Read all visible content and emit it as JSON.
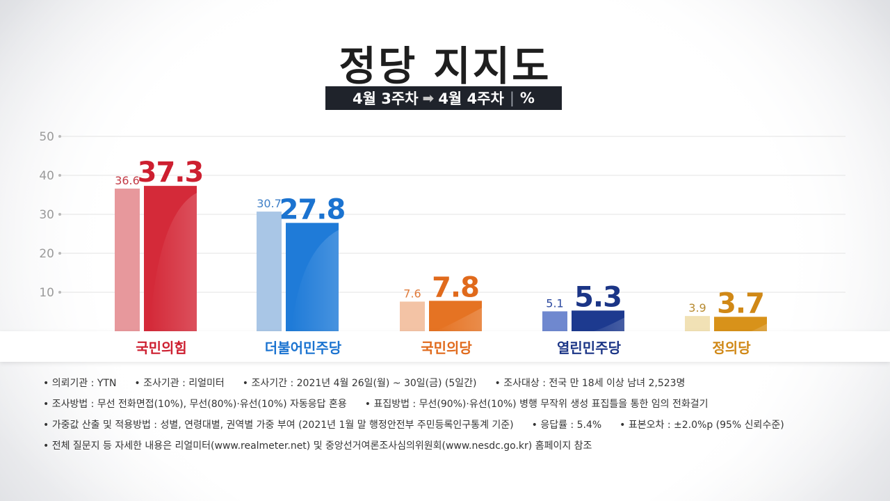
{
  "title": "정당 지지도",
  "subtitle": {
    "from": "4월 3주차",
    "to": "4월 4주차",
    "unit": "%"
  },
  "chart_data": {
    "type": "bar",
    "categories": [
      "국민의힘",
      "더불어민주당",
      "국민의당",
      "열린민주당",
      "정의당"
    ],
    "series": [
      {
        "name": "4월 3주차",
        "values": [
          36.6,
          30.7,
          7.6,
          5.1,
          3.9
        ]
      },
      {
        "name": "4월 4주차",
        "values": [
          37.3,
          27.8,
          7.8,
          5.3,
          3.7
        ]
      }
    ],
    "y_ticks": [
      10,
      20,
      30,
      40,
      50
    ],
    "ylim": [
      0,
      50
    ],
    "grid": true,
    "colors": {
      "prev": [
        "#e7989c",
        "#a9c6e6",
        "#f3c3a5",
        "#6f88cf",
        "#f1e1b5"
      ],
      "curr": [
        "#d42a39",
        "#1f7bd8",
        "#e57323",
        "#1d3a8f",
        "#d8921a"
      ],
      "prev_label": [
        "#c23a45",
        "#3f7fc7",
        "#e07a3a",
        "#2d4aa0",
        "#b78a30"
      ],
      "curr_label": [
        "#cd1f30",
        "#1b73d0",
        "#e06a1c",
        "#1b3586",
        "#d08816"
      ]
    }
  },
  "notes": [
    [
      "• 의뢰기관 : YTN",
      "• 조사기관 : 리얼미터",
      "• 조사기간 : 2021년 4월 26일(월) ~ 30일(금) (5일간)",
      "• 조사대상 : 전국 만 18세 이상 남녀 2,523명"
    ],
    [
      "• 조사방법 : 무선 전화면접(10%), 무선(80%)·유선(10%) 자동응답 혼용",
      "• 표집방법 : 무선(90%)·유선(10%) 병행 무작위 생성 표집틀을 통한 임의 전화걸기"
    ],
    [
      "• 가중값 산출 및 적용방법 : 성별, 연령대별, 권역별 가중 부여 (2021년 1월 말 행정안전부 주민등록인구통계 기준)",
      "• 응답률 : 5.4%",
      "• 표본오차 : ±2.0%p (95% 신뢰수준)"
    ],
    [
      "• 전체 질문지 등 자세한 내용은 리얼미터(www.realmeter.net) 및 중앙선거여론조사심의위원회(www.nesdc.go.kr) 홈페이지 참조"
    ]
  ]
}
